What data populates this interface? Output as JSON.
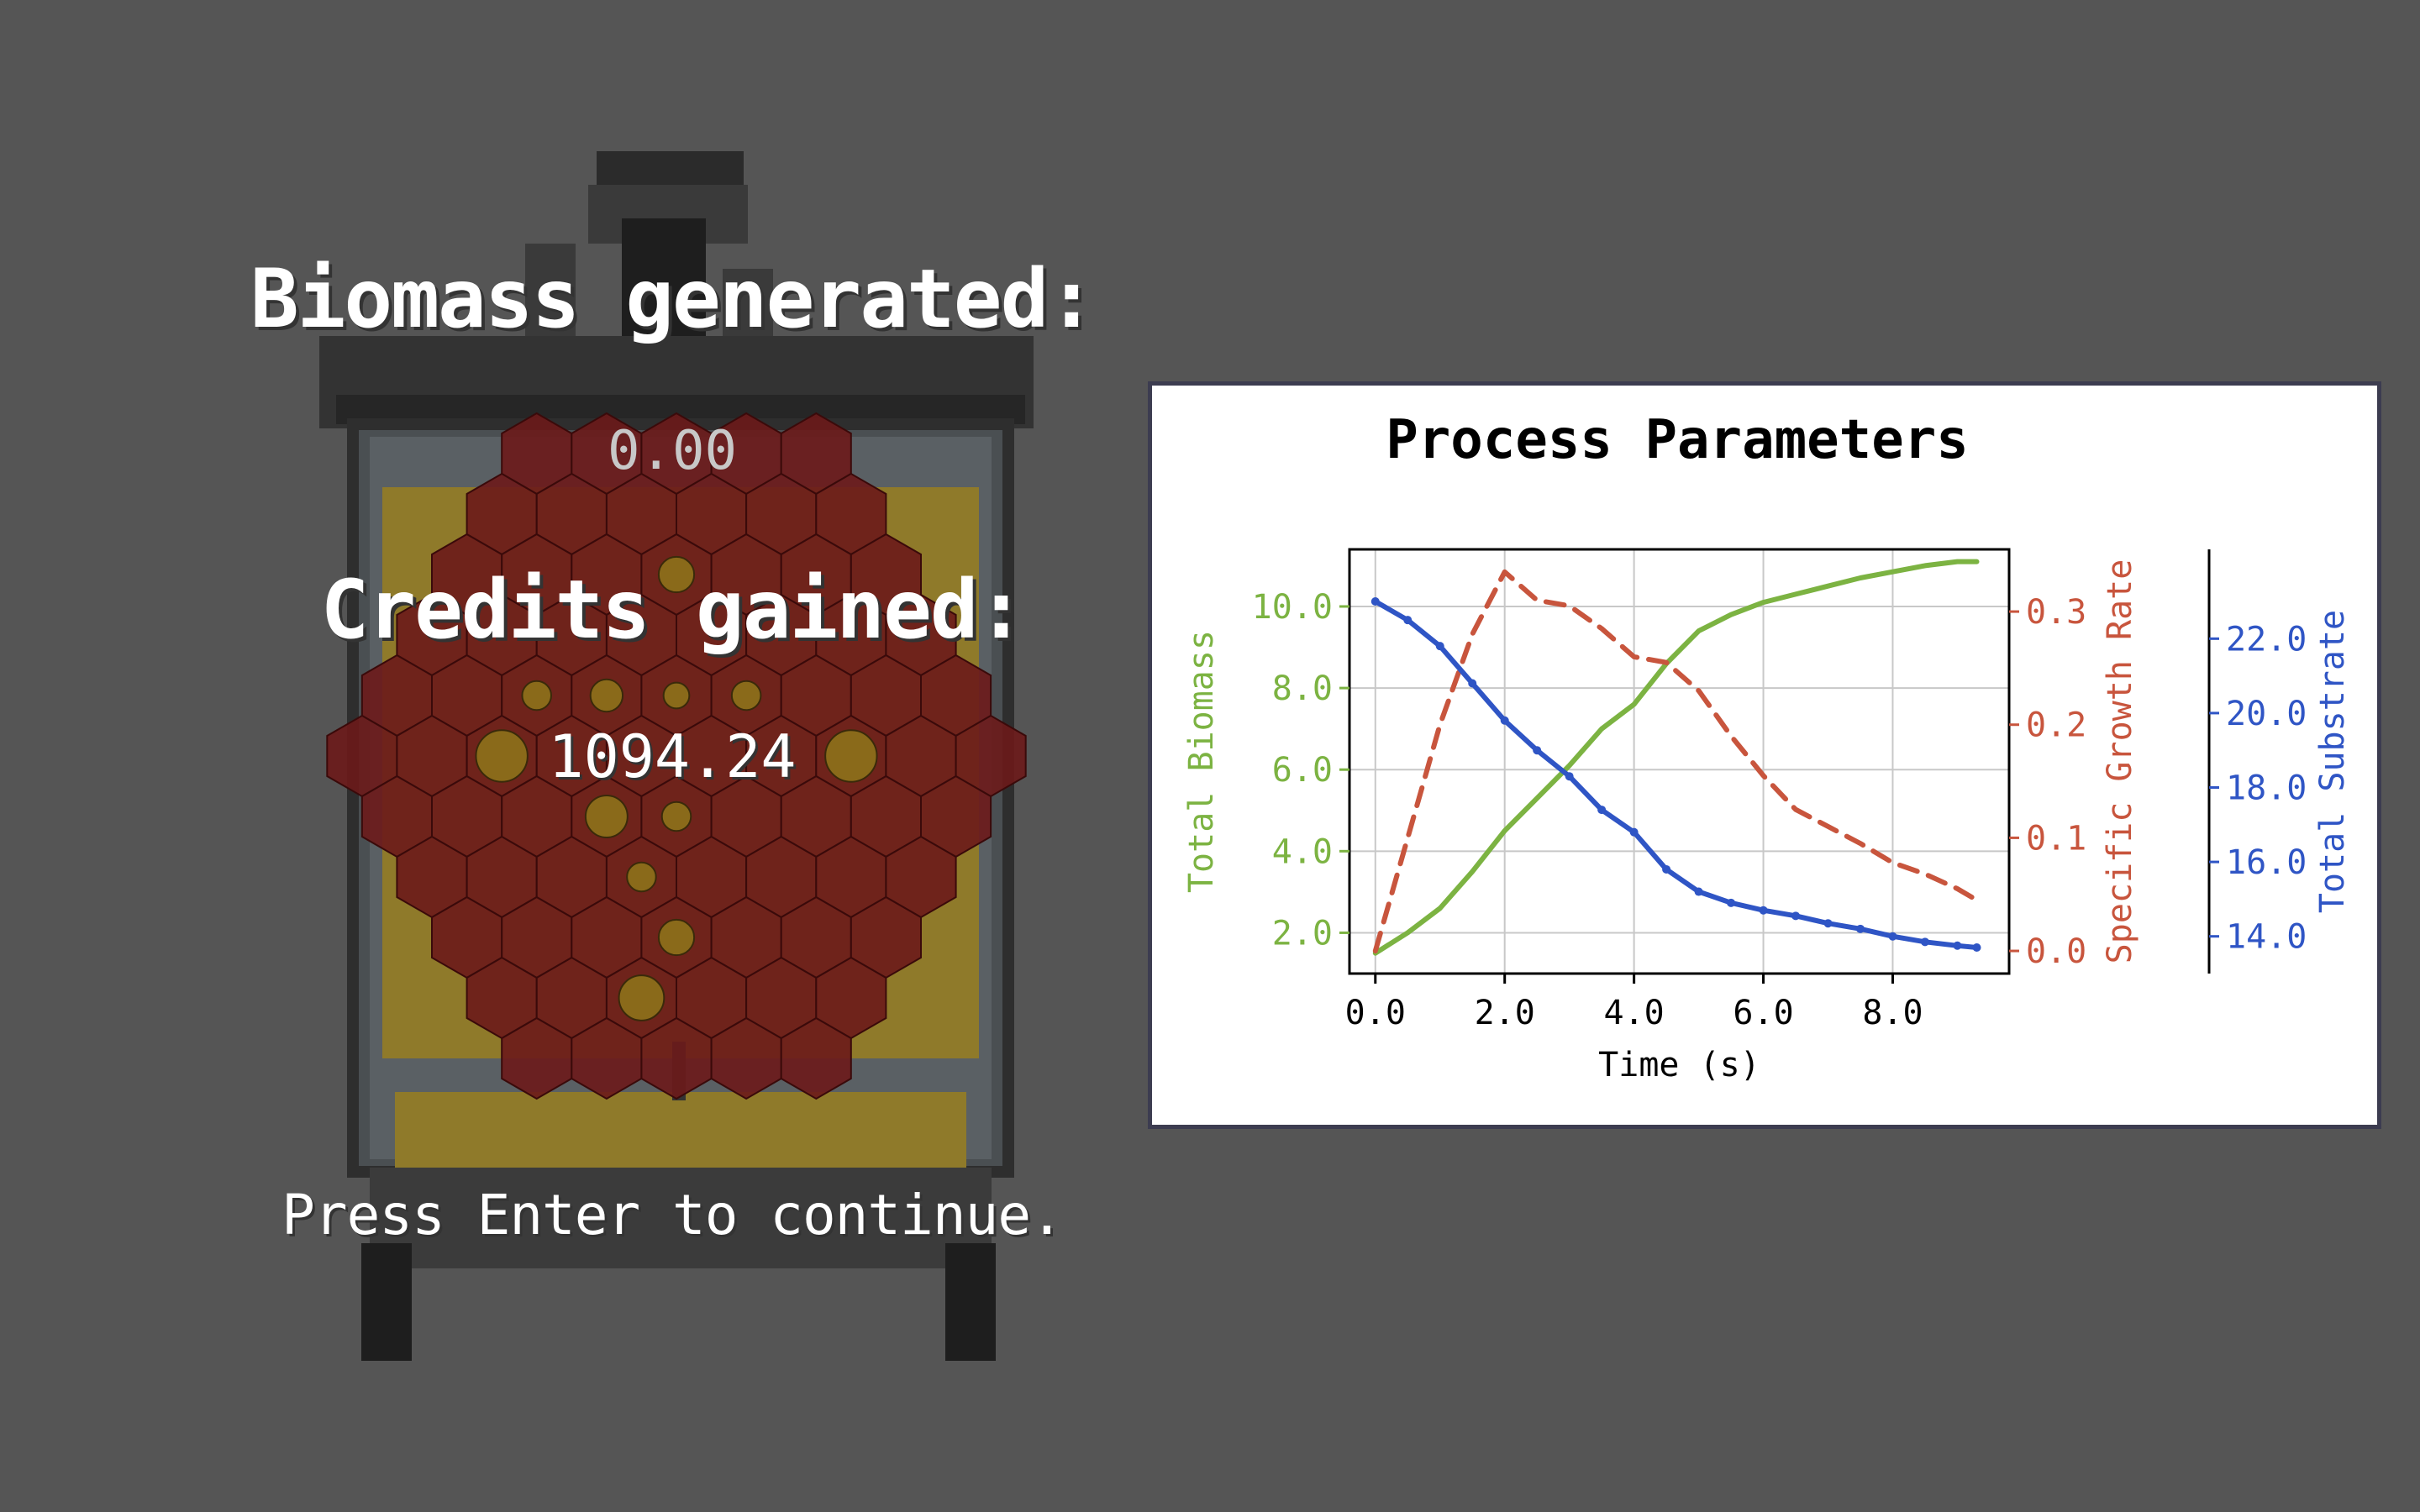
{
  "overlay": {
    "biomass_label": "Biomass generated:",
    "biomass_value": "0.00",
    "credits_label": "Credits gained:",
    "credits_value": "1094.24",
    "continue_prompt": "Press Enter to continue."
  },
  "colors": {
    "background": "#555555",
    "hex_cell": "#6b1a1a",
    "hex_border": "#3a0a0a",
    "bubble": "#8a6a1a",
    "medium": "#b8860b",
    "biomass": "#7cb342",
    "growth_rate": "#c8553d",
    "substrate": "#2f55c5"
  },
  "chart_data": {
    "type": "line",
    "title": "Process Parameters",
    "xlabel": "Time (s)",
    "xlim": [
      -0.4,
      9.8
    ],
    "x_ticks": [
      0.0,
      2.0,
      4.0,
      6.0,
      8.0
    ],
    "x_tick_labels": [
      "0.0",
      "2.0",
      "4.0",
      "6.0",
      "8.0"
    ],
    "grid": true,
    "axes": [
      {
        "id": "biomass",
        "label": "Total Biomass",
        "side": "left",
        "ylim": [
          1.0,
          11.4
        ],
        "ticks": [
          2.0,
          4.0,
          6.0,
          8.0,
          10.0
        ],
        "tick_labels": [
          "2.0",
          "4.0",
          "6.0",
          "8.0",
          "10.0"
        ]
      },
      {
        "id": "growth",
        "label": "Specific Growth Rate",
        "side": "right",
        "ylim": [
          -0.02,
          0.355
        ],
        "ticks": [
          0.0,
          0.1,
          0.2,
          0.3
        ],
        "tick_labels": [
          "0.0",
          "0.1",
          "0.2",
          "0.3"
        ]
      },
      {
        "id": "substrate",
        "label": "Total Substrate",
        "side": "right-outer",
        "ylim": [
          13.0,
          24.4
        ],
        "ticks": [
          14.0,
          16.0,
          18.0,
          20.0,
          22.0
        ],
        "tick_labels": [
          "14.0",
          "16.0",
          "18.0",
          "20.0",
          "22.0"
        ]
      }
    ],
    "series": [
      {
        "axis": "biomass",
        "style": "solid",
        "x": [
          0.0,
          0.5,
          1.0,
          1.5,
          2.0,
          2.5,
          3.0,
          3.5,
          4.0,
          4.5,
          5.0,
          5.5,
          6.0,
          6.5,
          7.0,
          7.5,
          8.0,
          8.5,
          9.0,
          9.3
        ],
        "y": [
          1.5,
          2.0,
          2.6,
          3.5,
          4.5,
          5.3,
          6.1,
          7.0,
          7.6,
          8.6,
          9.4,
          9.8,
          10.1,
          10.3,
          10.5,
          10.7,
          10.85,
          11.0,
          11.1,
          11.1
        ]
      },
      {
        "axis": "growth",
        "style": "dashed",
        "x": [
          0.0,
          0.5,
          1.0,
          1.5,
          2.0,
          2.5,
          3.0,
          3.5,
          4.0,
          4.5,
          5.0,
          5.5,
          6.0,
          6.5,
          7.0,
          7.5,
          8.0,
          8.5,
          9.0,
          9.3
        ],
        "y": [
          0.0,
          0.1,
          0.2,
          0.28,
          0.335,
          0.31,
          0.305,
          0.285,
          0.26,
          0.255,
          0.23,
          0.19,
          0.155,
          0.125,
          0.11,
          0.095,
          0.078,
          0.068,
          0.055,
          0.045
        ]
      },
      {
        "axis": "substrate",
        "style": "solid",
        "x": [
          0.0,
          0.5,
          1.0,
          1.5,
          2.0,
          2.5,
          3.0,
          3.5,
          4.0,
          4.5,
          5.0,
          5.5,
          6.0,
          6.5,
          7.0,
          7.5,
          8.0,
          8.5,
          9.0,
          9.3
        ],
        "y": [
          23.0,
          22.5,
          21.8,
          20.8,
          19.8,
          19.0,
          18.3,
          17.4,
          16.8,
          15.8,
          15.2,
          14.9,
          14.7,
          14.55,
          14.35,
          14.2,
          14.0,
          13.85,
          13.75,
          13.7
        ]
      }
    ]
  }
}
